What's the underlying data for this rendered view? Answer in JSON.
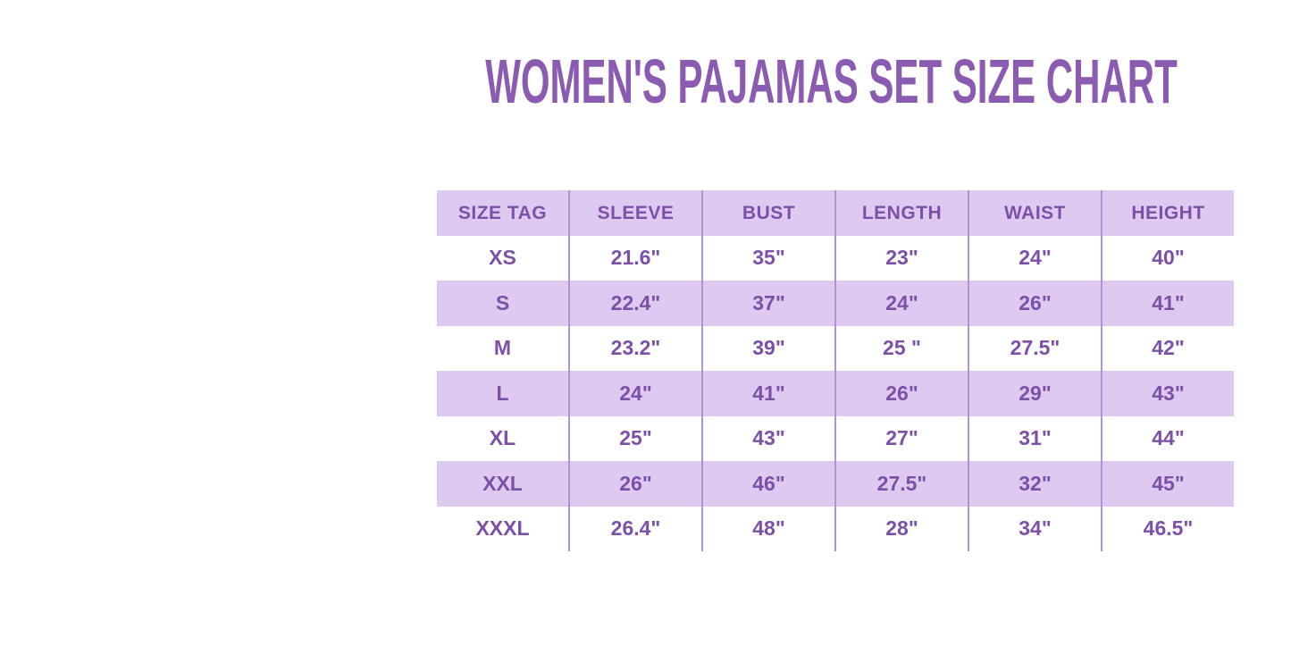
{
  "title": "WOMEN'S PAJAMAS SET SIZE CHART",
  "colors": {
    "title_text": "#8a5bb1",
    "cell_text": "#7d50a8",
    "row_lavender": "#dec9f0",
    "row_white": "#ffffff",
    "divider": "#b193d1",
    "page_background": "#ffffff"
  },
  "chart_data": {
    "type": "table",
    "title": "WOMEN'S PAJAMAS SET SIZE CHART",
    "columns": [
      "SIZE TAG",
      "SLEEVE",
      "BUST",
      "LENGTH",
      "WAIST",
      "HEIGHT"
    ],
    "rows": [
      [
        "XS",
        "21.6\"",
        "35\"",
        "23\"",
        "24\"",
        "40\""
      ],
      [
        "S",
        "22.4\"",
        "37\"",
        "24\"",
        "26\"",
        "41\""
      ],
      [
        "M",
        "23.2\"",
        "39\"",
        "25 \"",
        "27.5\"",
        "42\""
      ],
      [
        "L",
        "24\"",
        "41\"",
        "26\"",
        "29\"",
        "43\""
      ],
      [
        "XL",
        "25\"",
        "43\"",
        "27\"",
        "31\"",
        "44\""
      ],
      [
        "XXL",
        "26\"",
        "46\"",
        "27.5\"",
        "32\"",
        "45\""
      ],
      [
        "XXXL",
        "26.4\"",
        "48\"",
        "28\"",
        "34\"",
        "46.5\""
      ]
    ],
    "layout": {
      "row_striping": "header and rows S, L, XXL lavender; rows XS, M, XL, XXXL white",
      "grid": "vertical column dividers only, no horizontal lines",
      "units": "inches"
    }
  }
}
